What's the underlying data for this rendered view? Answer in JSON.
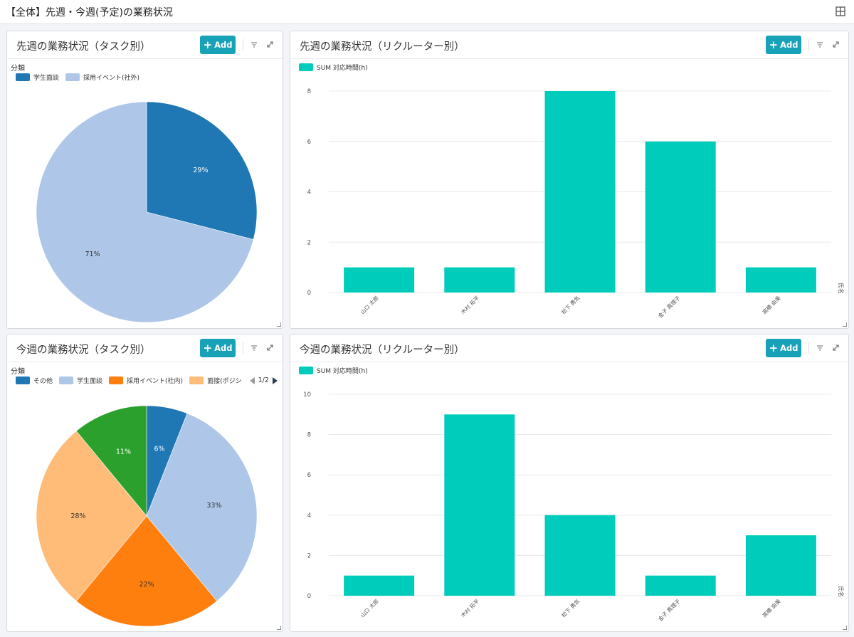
{
  "page_title": "【全体】先週・今週(予定)の業務状況",
  "panels": {
    "last_task": {
      "title": "先週の業務状況（タスク別）",
      "add_label": "Add",
      "legend_caption": "分類",
      "legend": [
        {
          "label": "学生面談",
          "color": "#1f77b4"
        },
        {
          "label": "採用イベント(社外)",
          "color": "#aec7e8"
        }
      ]
    },
    "last_recruiter": {
      "title": "先週の業務状況（リクルーター別）",
      "add_label": "Add",
      "legend_label": "SUM 対応時間(h)",
      "legend_color": "#00ccbb",
      "axis_name": "氏名"
    },
    "this_task": {
      "title": "今週の業務状況（タスク別）",
      "add_label": "Add",
      "legend_caption": "分類",
      "legend": [
        {
          "label": "その他",
          "color": "#1f77b4"
        },
        {
          "label": "学生面談",
          "color": "#aec7e8"
        },
        {
          "label": "採用イベント(社内)",
          "color": "#ff7f0e"
        },
        {
          "label": "面接(ポジシ",
          "color": "#ffbb78"
        }
      ],
      "pager": "1/2"
    },
    "this_recruiter": {
      "title": "今週の業務状況（リクルーター別）",
      "add_label": "Add",
      "legend_label": "SUM 対応時間(h)",
      "legend_color": "#00ccbb",
      "axis_name": "氏名"
    }
  },
  "chart_data": [
    {
      "type": "pie",
      "slices": [
        {
          "label": "学生面談",
          "value": 29,
          "display": "29%",
          "color": "#1f77b4",
          "text_color": "#ffffff"
        },
        {
          "label": "採用イベント(社外)",
          "value": 71,
          "display": "71%",
          "color": "#aec7e8",
          "text_color": "#333333"
        }
      ]
    },
    {
      "type": "bar",
      "categories": [
        "山口 太郎",
        "木村 拓平",
        "松下 勇気",
        "金子 真理子",
        "高橋 由美"
      ],
      "values": [
        1,
        1,
        8,
        6,
        1
      ],
      "ylim": [
        0,
        8
      ],
      "yticks": [
        0,
        2,
        4,
        6,
        8
      ],
      "grid": true,
      "series_name": "SUM 対応時間(h)",
      "xlabel": "氏名",
      "color": "#00ccbb"
    },
    {
      "type": "pie",
      "slices": [
        {
          "label": "その他",
          "value": 6,
          "display": "6%",
          "color": "#1f77b4",
          "text_color": "#ffffff"
        },
        {
          "label": "学生面談",
          "value": 33,
          "display": "33%",
          "color": "#aec7e8",
          "text_color": "#333333"
        },
        {
          "label": "採用イベント(社内)",
          "value": 22,
          "display": "22%",
          "color": "#ff7f0e",
          "text_color": "#333333"
        },
        {
          "label": "面接(ポジシ",
          "value": 28,
          "display": "28%",
          "color": "#ffbb78",
          "text_color": "#333333"
        },
        {
          "label": "",
          "value": 11,
          "display": "11%",
          "color": "#2ca02c",
          "text_color": "#ffffff"
        }
      ]
    },
    {
      "type": "bar",
      "categories": [
        "山口 太郎",
        "木村 拓平",
        "松下 勇気",
        "金子 真理子",
        "高橋 由美"
      ],
      "values": [
        1,
        9,
        4,
        1,
        3
      ],
      "ylim": [
        0,
        10
      ],
      "yticks": [
        0,
        2,
        4,
        6,
        8,
        10
      ],
      "grid": true,
      "series_name": "SUM 対応時間(h)",
      "xlabel": "氏名",
      "color": "#00ccbb"
    }
  ]
}
